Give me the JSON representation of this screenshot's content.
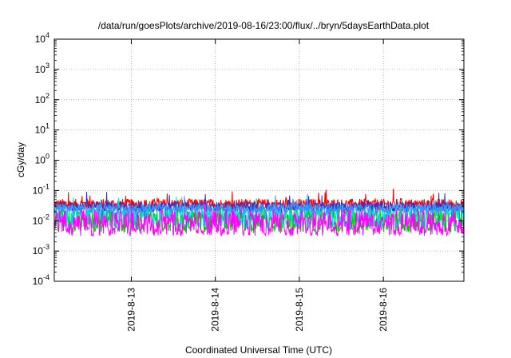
{
  "chart_data": {
    "type": "line",
    "title": "/data/run/goesPlots/archive/2019-08-16/23:00/flux/../bryn/5daysEarthData.plot",
    "xlabel": "Coordinated Universal Time (UTC)",
    "ylabel": "cGy/day",
    "y_scale": "log",
    "ylim": [
      0.0001,
      10000
    ],
    "xlim": [
      "2019-08-12 02:00",
      "2019-08-16 23:00"
    ],
    "y_ticks": [
      {
        "value": 0.0001,
        "base": "10",
        "exp": "-4"
      },
      {
        "value": 0.001,
        "base": "10",
        "exp": "-3"
      },
      {
        "value": 0.01,
        "base": "10",
        "exp": "-2"
      },
      {
        "value": 0.1,
        "base": "10",
        "exp": "-1"
      },
      {
        "value": 1,
        "base": "10",
        "exp": "0"
      },
      {
        "value": 10,
        "base": "10",
        "exp": "1"
      },
      {
        "value": 100,
        "base": "10",
        "exp": "2"
      },
      {
        "value": 1000,
        "base": "10",
        "exp": "3"
      },
      {
        "value": 10000,
        "base": "10",
        "exp": "4"
      }
    ],
    "x_ticks": [
      {
        "value": "2019-08-13 00:00",
        "label": "2019-8-13"
      },
      {
        "value": "2019-08-14 00:00",
        "label": "2019-8-14"
      },
      {
        "value": "2019-08-15 00:00",
        "label": "2019-8-15"
      },
      {
        "value": "2019-08-16 00:00",
        "label": "2019-8-16"
      }
    ],
    "grid": true,
    "legend": "none",
    "series": [
      {
        "color": "#ff0000",
        "baseline": 0.035,
        "noise": 0.18,
        "dips": false
      },
      {
        "color": "#00cc00",
        "baseline": 0.016,
        "noise": 0.22,
        "dips": true,
        "dip_to": 0.006
      },
      {
        "color": "#00dddd",
        "baseline": 0.019,
        "noise": 0.2,
        "dips": true,
        "dip_to": 0.008
      },
      {
        "color": "#3333cc",
        "baseline": 0.029,
        "noise": 0.16,
        "dips": false
      },
      {
        "color": "#3399ff",
        "baseline": 0.025,
        "noise": 0.16,
        "dips": false
      },
      {
        "color": "#ff00ff",
        "baseline": 0.012,
        "noise": 0.3,
        "dips": true,
        "dip_to": 0.0045
      }
    ]
  }
}
